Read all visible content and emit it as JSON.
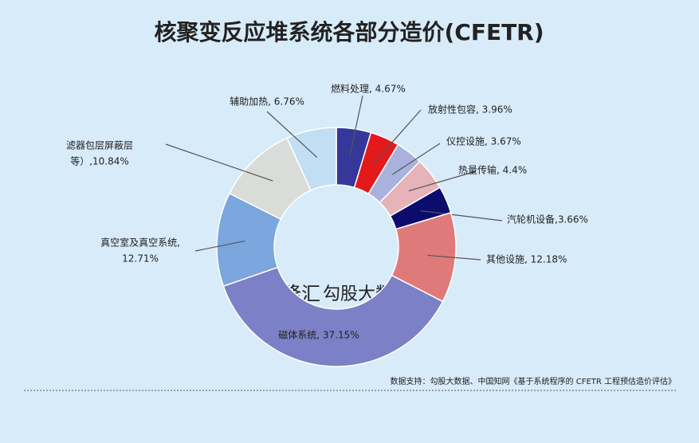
{
  "chart_data": {
    "type": "pie",
    "title": "核聚变反应堆系统各部分造价(CFETR)",
    "values": [
      4.67,
      3.96,
      3.67,
      4.4,
      3.66,
      12.18,
      37.15,
      12.71,
      10.84,
      6.76
    ],
    "value_labels": [
      "燃料处理, 4.67%",
      "放射性包容, 3.96%",
      "仪控设施, 3.67%",
      "热量传输, 4.4%",
      "汽轮机设备,3.66%",
      "其他设施, 12.18%",
      "磁体系统, 37.15%",
      [
        "真空室及真空系统,",
        "12.71%"
      ],
      [
        "滤器包层屏蔽层",
        "等）,10.84%"
      ],
      "辅助加热, 6.76%"
    ],
    "colors": [
      "#35379a",
      "#e3191b",
      "#a9b2dc",
      "#e6b3bb",
      "#0b0c6e",
      "#e07a7a",
      "#7c80c6",
      "#7ba6de",
      "#d9dcd9",
      "#c2def3"
    ],
    "source": "数据支持：勾股大数据、中国知网《基于系统程序的 CFETR 工程预估造价评估》",
    "watermark": [
      "格隆汇",
      "勾股大数据"
    ]
  }
}
